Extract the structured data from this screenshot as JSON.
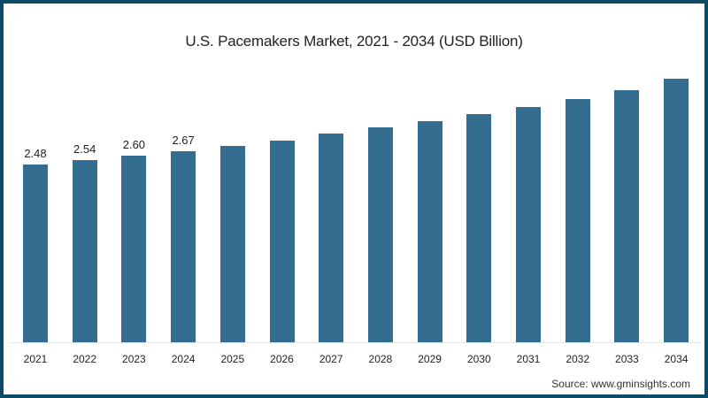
{
  "chart_data": {
    "type": "bar",
    "title": "U.S. Pacemakers Market, 2021 - 2034 (USD Billion)",
    "xlabel": "",
    "ylabel": "",
    "categories": [
      "2021",
      "2022",
      "2023",
      "2024",
      "2025",
      "2026",
      "2027",
      "2028",
      "2029",
      "2030",
      "2031",
      "2032",
      "2033",
      "2034"
    ],
    "values": [
      2.48,
      2.54,
      2.6,
      2.67,
      2.74,
      2.81,
      2.91,
      3.0,
      3.09,
      3.18,
      3.28,
      3.39,
      3.52,
      3.68
    ],
    "data_labels": [
      "2.48",
      "2.54",
      "2.60",
      "2.67",
      "",
      "",
      "",
      "",
      "",
      "",
      "",
      "",
      "",
      ""
    ],
    "ylim": [
      0,
      3.8
    ],
    "grid": false,
    "legend": null,
    "bar_color": "#336d8f",
    "source": "Source: www.gminsights.com"
  }
}
